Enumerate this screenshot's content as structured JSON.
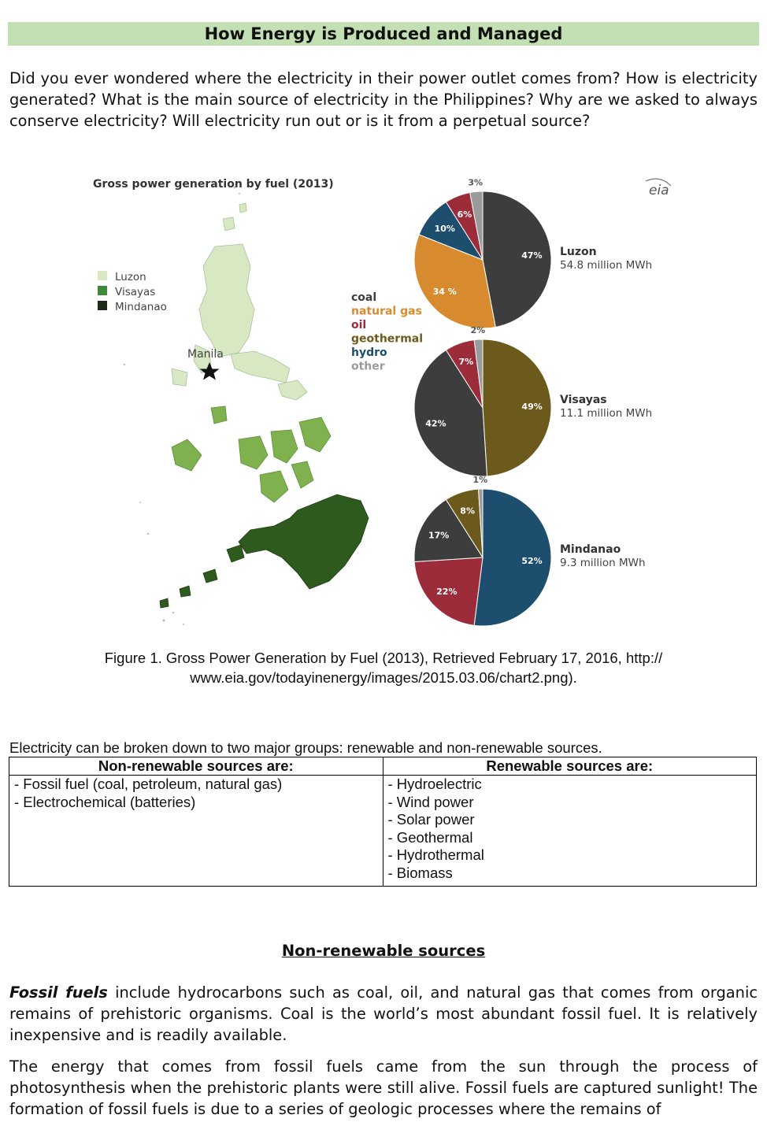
{
  "title": "How Energy is Produced and Managed",
  "intro": "Did you ever wondered where the electricity in their power outlet comes from? How is electricity generated? What is the main source of electricity in the Philippines? Why are we asked to always conserve electricity? Will electricity run out or is it from a perpetual source?",
  "figure": {
    "chart_title": "Gross power generation by fuel (2013)",
    "source_logo": "eia",
    "map_legend": [
      "Luzon",
      "Visayas",
      "Mindanao"
    ],
    "map_label": "Manila",
    "fuel_legend": [
      {
        "label": "coal",
        "color": "#3d3d3d"
      },
      {
        "label": "natural gas",
        "color": "#d88a2e"
      },
      {
        "label": "oil",
        "color": "#9c2c3a"
      },
      {
        "label": "geothermal",
        "color": "#6b5a1c"
      },
      {
        "label": "hydro",
        "color": "#1d4e6e"
      },
      {
        "label": "other",
        "color": "#9a9a9a"
      }
    ],
    "caption": "Figure 1. Gross Power Generation by Fuel (2013), Retrieved February 17, 2016, http:// www.eia.gov/todayinenergy/images/2015.03.06/chart2.png)."
  },
  "chart_data": {
    "type": "pie",
    "title": "Gross power generation by fuel (2013)",
    "charts": [
      {
        "name": "Luzon",
        "subtitle": "54.8 million MWh",
        "slices": [
          {
            "label": "coal",
            "value": 47,
            "text": "47%"
          },
          {
            "label": "natural gas",
            "value": 34,
            "text": "34 %"
          },
          {
            "label": "hydro",
            "value": 10,
            "text": "10%"
          },
          {
            "label": "oil",
            "value": 6,
            "text": "6%"
          },
          {
            "label": "other",
            "value": 3,
            "text": "3%"
          }
        ]
      },
      {
        "name": "Visayas",
        "subtitle": "11.1 million MWh",
        "slices": [
          {
            "label": "geothermal",
            "value": 49,
            "text": "49%"
          },
          {
            "label": "coal",
            "value": 42,
            "text": "42%"
          },
          {
            "label": "oil",
            "value": 7,
            "text": "7%"
          },
          {
            "label": "other",
            "value": 2,
            "text": "2%"
          }
        ]
      },
      {
        "name": "Mindanao",
        "subtitle": "9.3 million MWh",
        "slices": [
          {
            "label": "hydro",
            "value": 52,
            "text": "52%"
          },
          {
            "label": "oil",
            "value": 22,
            "text": "22%"
          },
          {
            "label": "coal",
            "value": 17,
            "text": "17%"
          },
          {
            "label": "geothermal",
            "value": 8,
            "text": "8%"
          },
          {
            "label": "other",
            "value": 1,
            "text": "1%"
          }
        ]
      }
    ]
  },
  "groups_intro": "Electricity can be broken down to two major groups: renewable and non-renewable sources.",
  "table": {
    "headers": [
      "Non-renewable sources are:",
      "Renewable sources are:"
    ],
    "non_renewable": [
      "- Fossil fuel (coal, petroleum, natural gas)",
      "- Electrochemical (batteries)"
    ],
    "renewable": [
      "- Hydroelectric",
      "- Wind power",
      "- Solar power",
      "- Geothermal",
      "- Hydrothermal",
      "- Biomass"
    ]
  },
  "section_heading": "Non-renewable sources",
  "paragraphs": {
    "p1_lead": "Fossil fuels",
    "p1_rest": " include hydrocarbons such as coal, oil, and natural gas that comes from organic remains of prehistoric organisms. Coal is the world’s most abundant fossil fuel. It is relatively inexpensive and is readily available.",
    "p2": "The energy that comes from fossil fuels came from the sun through the process of photosynthesis when the prehistoric plants were still alive. Fossil fuels are captured sunlight! The formation of fossil fuels is due to a series of geologic processes where the remains of"
  },
  "colors": {
    "title_bg": "#c3e0b4",
    "luzon": "#d7e8c2",
    "visayas": "#7fb24f",
    "mindanao": "#2f5a1e"
  }
}
